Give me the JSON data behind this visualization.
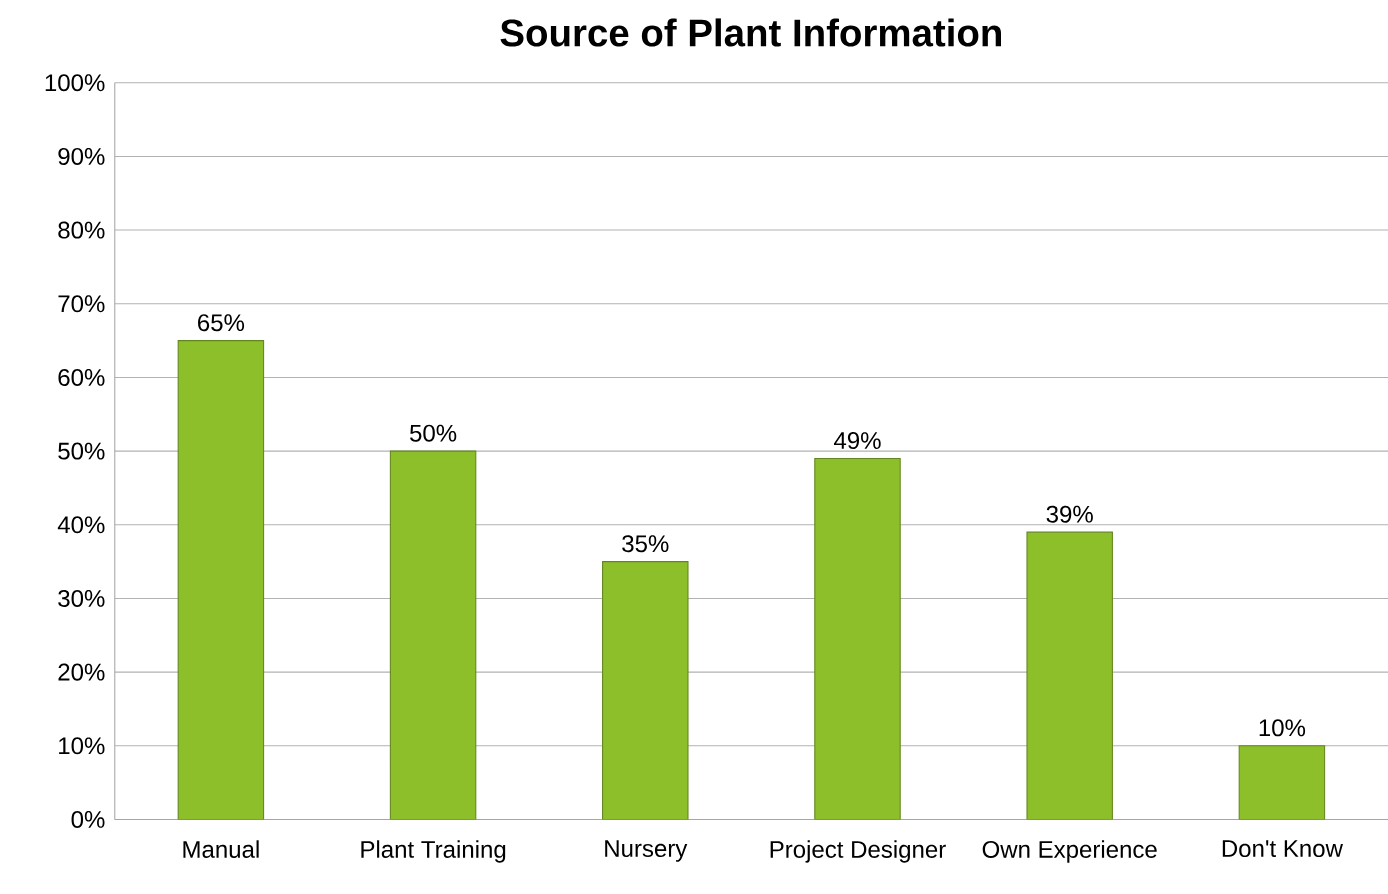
{
  "chart_data": {
    "type": "bar",
    "title": "Source of Plant Information",
    "categories": [
      "Manual",
      "Plant Training",
      "Nursery",
      "Project Designer",
      "Own Experience",
      "Don't Know"
    ],
    "values": [
      65,
      50,
      35,
      49,
      39,
      10
    ],
    "value_labels": [
      "65%",
      "50%",
      "35%",
      "49%",
      "39%",
      "10%"
    ],
    "color": "#8dbf2b",
    "ylim": [
      0,
      100
    ],
    "yticks": [
      {
        "value": 0,
        "label": "0%"
      },
      {
        "value": 10,
        "label": "10%"
      },
      {
        "value": 20,
        "label": "20%"
      },
      {
        "value": 30,
        "label": "30%"
      },
      {
        "value": 40,
        "label": "40%"
      },
      {
        "value": 50,
        "label": "50%"
      },
      {
        "value": 60,
        "label": "60%"
      },
      {
        "value": 70,
        "label": "70%"
      },
      {
        "value": 80,
        "label": "80%"
      },
      {
        "value": 90,
        "label": "90%"
      },
      {
        "value": 100,
        "label": "100%"
      }
    ],
    "grid": "y"
  }
}
